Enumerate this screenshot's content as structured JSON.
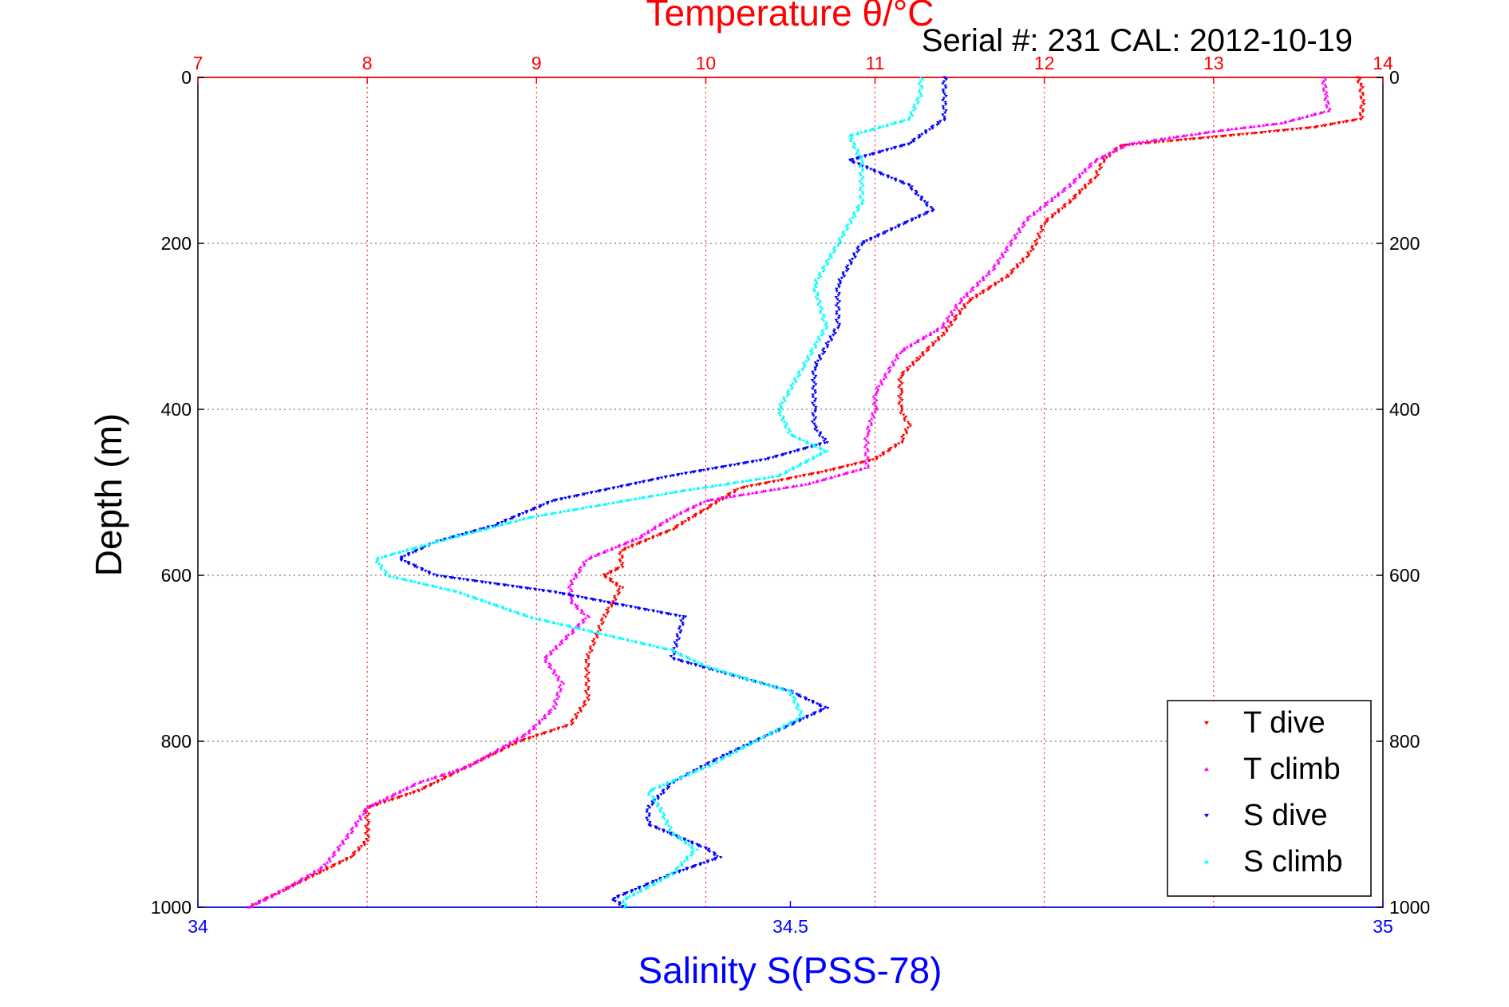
{
  "chart_data": {
    "type": "scatter",
    "title": "Temperature θ/°C",
    "subtitle": "Serial #: 231  CAL: 2012-10-19",
    "xlabel": "Salinity S(PSS-78)",
    "ylabel": "Depth (m)",
    "temperature_axis": {
      "lim": [
        7,
        14
      ],
      "ticks": [
        "7",
        "8",
        "9",
        "10",
        "11",
        "12",
        "13",
        "14"
      ]
    },
    "salinity_axis": {
      "lim": [
        34,
        35
      ],
      "ticks": [
        "34",
        "34.5",
        "35"
      ]
    },
    "depth_axis": {
      "lim": [
        0,
        1000
      ],
      "reversed": true,
      "ticks": [
        "0",
        "200",
        "400",
        "600",
        "800",
        "1000"
      ]
    },
    "grid": true,
    "legend": {
      "placement": "bottom-right"
    },
    "colors": {
      "t_dive": "#ff0000",
      "t_climb": "#ff00ff",
      "s_dive": "#0000ff",
      "s_climb": "#00ffff",
      "temp_axis": "#ff0000",
      "sal_axis": "#0000ff"
    },
    "series": [
      {
        "name": "T dive",
        "variable": "temperature",
        "marker": "down-triangle",
        "points": [
          [
            13.85,
            0
          ],
          [
            13.87,
            10
          ],
          [
            13.88,
            30
          ],
          [
            13.87,
            50
          ],
          [
            13.6,
            60
          ],
          [
            13.1,
            70
          ],
          [
            12.45,
            82
          ],
          [
            12.35,
            100
          ],
          [
            12.3,
            120
          ],
          [
            12.15,
            150
          ],
          [
            12.0,
            175
          ],
          [
            11.95,
            200
          ],
          [
            11.9,
            215
          ],
          [
            11.78,
            240
          ],
          [
            11.55,
            270
          ],
          [
            11.4,
            310
          ],
          [
            11.25,
            340
          ],
          [
            11.15,
            360
          ],
          [
            11.15,
            380
          ],
          [
            11.15,
            400
          ],
          [
            11.2,
            420
          ],
          [
            11.15,
            440
          ],
          [
            11.0,
            460
          ],
          [
            10.7,
            475
          ],
          [
            10.2,
            495
          ],
          [
            10.0,
            520
          ],
          [
            9.8,
            545
          ],
          [
            9.5,
            570
          ],
          [
            9.5,
            590
          ],
          [
            9.4,
            600
          ],
          [
            9.5,
            615
          ],
          [
            9.4,
            650
          ],
          [
            9.3,
            700
          ],
          [
            9.3,
            750
          ],
          [
            9.2,
            780
          ],
          [
            8.9,
            800
          ],
          [
            8.6,
            830
          ],
          [
            8.3,
            860
          ],
          [
            8.0,
            880
          ],
          [
            8.0,
            900
          ],
          [
            8.0,
            920
          ],
          [
            7.9,
            940
          ],
          [
            7.7,
            960
          ],
          [
            7.5,
            980
          ],
          [
            7.3,
            1000
          ]
        ]
      },
      {
        "name": "T climb",
        "variable": "temperature",
        "marker": "up-triangle",
        "points": [
          [
            13.65,
            0
          ],
          [
            13.66,
            20
          ],
          [
            13.68,
            40
          ],
          [
            13.4,
            55
          ],
          [
            13.0,
            65
          ],
          [
            12.5,
            80
          ],
          [
            12.3,
            100
          ],
          [
            12.15,
            130
          ],
          [
            11.9,
            170
          ],
          [
            11.8,
            200
          ],
          [
            11.7,
            230
          ],
          [
            11.5,
            270
          ],
          [
            11.4,
            300
          ],
          [
            11.15,
            330
          ],
          [
            11.0,
            380
          ],
          [
            11.0,
            400
          ],
          [
            10.95,
            430
          ],
          [
            10.95,
            470
          ],
          [
            10.6,
            490
          ],
          [
            10.0,
            510
          ],
          [
            9.8,
            530
          ],
          [
            9.6,
            555
          ],
          [
            9.3,
            580
          ],
          [
            9.2,
            610
          ],
          [
            9.2,
            630
          ],
          [
            9.3,
            650
          ],
          [
            9.2,
            670
          ],
          [
            9.05,
            700
          ],
          [
            9.15,
            730
          ],
          [
            9.1,
            760
          ],
          [
            8.95,
            790
          ],
          [
            8.6,
            830
          ],
          [
            8.3,
            850
          ],
          [
            8.0,
            880
          ],
          [
            7.9,
            910
          ],
          [
            7.75,
            950
          ],
          [
            7.5,
            980
          ],
          [
            7.3,
            1000
          ]
        ]
      },
      {
        "name": "S dive",
        "variable": "salinity",
        "marker": "down-triangle",
        "points": [
          [
            34.63,
            0
          ],
          [
            34.63,
            20
          ],
          [
            34.63,
            50
          ],
          [
            34.6,
            80
          ],
          [
            34.55,
            100
          ],
          [
            34.6,
            130
          ],
          [
            34.62,
            160
          ],
          [
            34.56,
            200
          ],
          [
            34.54,
            250
          ],
          [
            34.54,
            300
          ],
          [
            34.52,
            350
          ],
          [
            34.52,
            400
          ],
          [
            34.52,
            420
          ],
          [
            34.53,
            440
          ],
          [
            34.48,
            460
          ],
          [
            34.4,
            480
          ],
          [
            34.3,
            510
          ],
          [
            34.25,
            540
          ],
          [
            34.2,
            560
          ],
          [
            34.17,
            580
          ],
          [
            34.2,
            600
          ],
          [
            34.3,
            620
          ],
          [
            34.41,
            650
          ],
          [
            34.4,
            700
          ],
          [
            34.5,
            740
          ],
          [
            34.53,
            760
          ],
          [
            34.5,
            780
          ],
          [
            34.44,
            820
          ],
          [
            34.4,
            850
          ],
          [
            34.38,
            880
          ],
          [
            34.38,
            900
          ],
          [
            34.43,
            930
          ],
          [
            34.44,
            940
          ],
          [
            34.4,
            960
          ],
          [
            34.35,
            990
          ],
          [
            34.36,
            1000
          ]
        ]
      },
      {
        "name": "S climb",
        "variable": "salinity",
        "marker": "up-triangle",
        "points": [
          [
            34.61,
            0
          ],
          [
            34.61,
            20
          ],
          [
            34.6,
            50
          ],
          [
            34.55,
            70
          ],
          [
            34.56,
            100
          ],
          [
            34.56,
            150
          ],
          [
            34.54,
            200
          ],
          [
            34.52,
            250
          ],
          [
            34.53,
            300
          ],
          [
            34.51,
            350
          ],
          [
            34.49,
            400
          ],
          [
            34.5,
            430
          ],
          [
            34.53,
            450
          ],
          [
            34.49,
            480
          ],
          [
            34.4,
            500
          ],
          [
            34.28,
            530
          ],
          [
            34.2,
            560
          ],
          [
            34.15,
            580
          ],
          [
            34.16,
            600
          ],
          [
            34.22,
            620
          ],
          [
            34.28,
            650
          ],
          [
            34.4,
            690
          ],
          [
            34.43,
            710
          ],
          [
            34.5,
            740
          ],
          [
            34.51,
            770
          ],
          [
            34.47,
            800
          ],
          [
            34.43,
            830
          ],
          [
            34.38,
            860
          ],
          [
            34.39,
            880
          ],
          [
            34.4,
            910
          ],
          [
            34.42,
            930
          ],
          [
            34.4,
            960
          ],
          [
            34.36,
            990
          ],
          [
            34.36,
            1000
          ]
        ]
      }
    ]
  }
}
